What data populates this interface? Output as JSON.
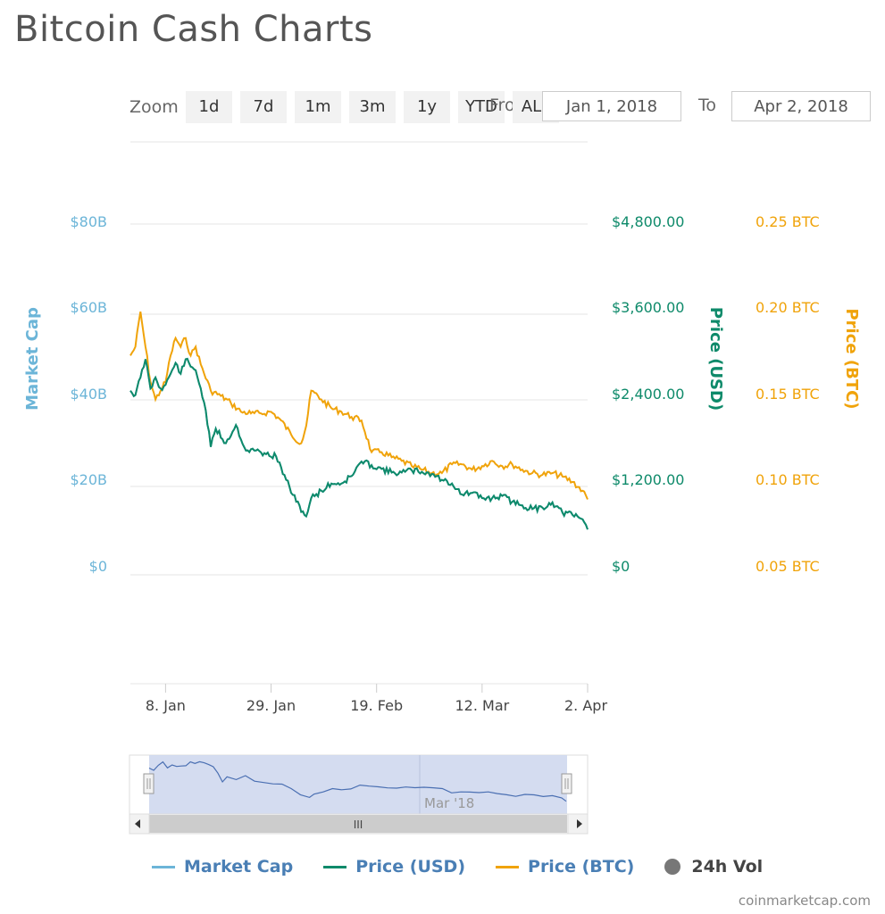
{
  "page": {
    "title": "Bitcoin Cash Charts"
  },
  "toolbar": {
    "zoom_label": "Zoom",
    "zoom_buttons": [
      "1d",
      "7d",
      "1m",
      "3m",
      "1y",
      "YTD",
      "ALL"
    ],
    "from_label": "From",
    "from_value": "Jan 1, 2018",
    "to_label": "To",
    "to_value": "Apr 2, 2018"
  },
  "colors": {
    "market_cap": "#6cb5d8",
    "price_usd": "#0e8a6a",
    "price_btc": "#f0a30a",
    "vol": "#777777",
    "navigator_fill": "#cfd8ee",
    "navigator_line": "#4a6fb2"
  },
  "chart_data": {
    "type": "line",
    "x_ticks": [
      "8. Jan",
      "29. Jan",
      "19. Feb",
      "12. Mar",
      "2. Apr"
    ],
    "xlim": [
      "2018-01-01",
      "2018-04-02"
    ],
    "axes": {
      "market_cap": {
        "label": "Market Cap",
        "ticks": [
          "$80B",
          "$60B",
          "$40B",
          "$20B",
          "$0"
        ],
        "ylim": [
          0,
          80
        ]
      },
      "price_usd": {
        "label": "Price (USD)",
        "ticks": [
          "$4,800.00",
          "$3,600.00",
          "$2,400.00",
          "$1,200.00",
          "$0"
        ],
        "ylim": [
          0,
          4800
        ]
      },
      "price_btc": {
        "label": "Price (BTC)",
        "ticks": [
          "0.25 BTC",
          "0.20 BTC",
          "0.15 BTC",
          "0.10 BTC",
          "0.05 BTC"
        ],
        "ylim": [
          0.05,
          0.25
        ]
      }
    },
    "series": [
      {
        "name": "Price (USD)",
        "dates": [
          "2018-01-01",
          "2018-01-02",
          "2018-01-03",
          "2018-01-04",
          "2018-01-05",
          "2018-01-06",
          "2018-01-07",
          "2018-01-08",
          "2018-01-09",
          "2018-01-10",
          "2018-01-11",
          "2018-01-12",
          "2018-01-13",
          "2018-01-14",
          "2018-01-15",
          "2018-01-16",
          "2018-01-17",
          "2018-01-18",
          "2018-01-20",
          "2018-01-22",
          "2018-01-24",
          "2018-01-26",
          "2018-01-28",
          "2018-01-30",
          "2018-02-01",
          "2018-02-03",
          "2018-02-05",
          "2018-02-06",
          "2018-02-08",
          "2018-02-10",
          "2018-02-12",
          "2018-02-14",
          "2018-02-16",
          "2018-02-18",
          "2018-02-20",
          "2018-02-22",
          "2018-02-24",
          "2018-02-26",
          "2018-02-28",
          "2018-03-02",
          "2018-03-04",
          "2018-03-06",
          "2018-03-08",
          "2018-03-10",
          "2018-03-12",
          "2018-03-14",
          "2018-03-16",
          "2018-03-18",
          "2018-03-20",
          "2018-03-22",
          "2018-03-24",
          "2018-03-26",
          "2018-03-28",
          "2018-03-30",
          "2018-04-01",
          "2018-04-02"
        ],
        "values": [
          2520,
          2460,
          2700,
          2950,
          2550,
          2700,
          2550,
          2600,
          2750,
          2900,
          2750,
          2950,
          2850,
          2800,
          2550,
          2250,
          1750,
          2000,
          1800,
          2050,
          1700,
          1700,
          1650,
          1620,
          1300,
          1000,
          800,
          1050,
          1150,
          1250,
          1250,
          1350,
          1550,
          1500,
          1450,
          1400,
          1400,
          1430,
          1410,
          1380,
          1300,
          1250,
          1100,
          1120,
          1050,
          1050,
          1080,
          1000,
          950,
          900,
          920,
          990,
          850,
          820,
          760,
          620
        ]
      },
      {
        "name": "Price (BTC)",
        "dates": [
          "2018-01-01",
          "2018-01-02",
          "2018-01-03",
          "2018-01-04",
          "2018-01-05",
          "2018-01-06",
          "2018-01-07",
          "2018-01-08",
          "2018-01-09",
          "2018-01-10",
          "2018-01-11",
          "2018-01-12",
          "2018-01-13",
          "2018-01-14",
          "2018-01-15",
          "2018-01-17",
          "2018-01-19",
          "2018-01-21",
          "2018-01-23",
          "2018-01-25",
          "2018-01-27",
          "2018-01-29",
          "2018-01-31",
          "2018-02-02",
          "2018-02-04",
          "2018-02-05",
          "2018-02-06",
          "2018-02-08",
          "2018-02-10",
          "2018-02-12",
          "2018-02-14",
          "2018-02-16",
          "2018-02-18",
          "2018-02-20",
          "2018-02-22",
          "2018-02-24",
          "2018-02-26",
          "2018-02-28",
          "2018-03-02",
          "2018-03-04",
          "2018-03-06",
          "2018-03-08",
          "2018-03-10",
          "2018-03-12",
          "2018-03-14",
          "2018-03-16",
          "2018-03-18",
          "2018-03-20",
          "2018-03-22",
          "2018-03-24",
          "2018-03-26",
          "2018-03-28",
          "2018-03-30",
          "2018-04-01",
          "2018-04-02"
        ],
        "values": [
          0.175,
          0.18,
          0.2,
          0.18,
          0.16,
          0.15,
          0.155,
          0.16,
          0.175,
          0.185,
          0.18,
          0.185,
          0.175,
          0.18,
          0.17,
          0.155,
          0.152,
          0.148,
          0.143,
          0.142,
          0.142,
          0.143,
          0.138,
          0.13,
          0.125,
          0.135,
          0.155,
          0.15,
          0.145,
          0.143,
          0.14,
          0.138,
          0.12,
          0.12,
          0.117,
          0.115,
          0.112,
          0.11,
          0.108,
          0.108,
          0.113,
          0.113,
          0.11,
          0.112,
          0.115,
          0.112,
          0.113,
          0.11,
          0.108,
          0.107,
          0.108,
          0.106,
          0.103,
          0.098,
          0.093
        ]
      }
    ],
    "navigator_label": "Mar '18"
  },
  "legend": [
    {
      "label": "Market Cap",
      "kind": "line",
      "color": "#6cb5d8"
    },
    {
      "label": "Price (USD)",
      "kind": "line",
      "color": "#0e8a6a"
    },
    {
      "label": "Price (BTC)",
      "kind": "line",
      "color": "#f0a30a"
    },
    {
      "label": "24h Vol",
      "kind": "dot",
      "color": "#777777"
    }
  ],
  "footer": {
    "credit": "coinmarketcap.com"
  }
}
